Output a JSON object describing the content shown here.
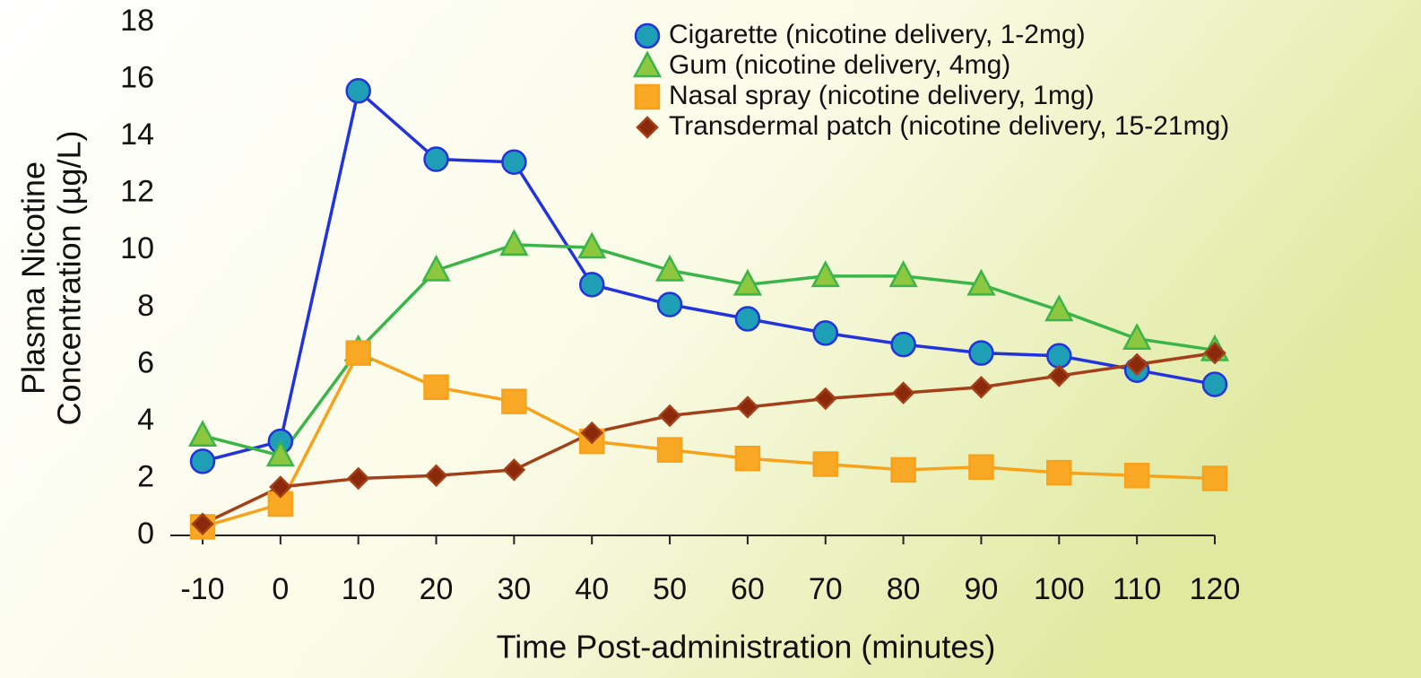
{
  "chart_data": {
    "type": "line",
    "xlabel": "Time Post-administration (minutes)",
    "ylabel": [
      "Plasma Nicotine",
      "Concentration (µg/L)"
    ],
    "x": [
      -10,
      0,
      10,
      20,
      30,
      40,
      50,
      60,
      70,
      80,
      90,
      100,
      110,
      120
    ],
    "xlim": [
      -10,
      120
    ],
    "xticks": [
      -10,
      0,
      10,
      20,
      30,
      40,
      50,
      60,
      70,
      80,
      90,
      100,
      110,
      120
    ],
    "ylim": [
      0,
      18
    ],
    "yticks": [
      0,
      2,
      4,
      6,
      8,
      10,
      12,
      14,
      16,
      18
    ],
    "legend": "top-right",
    "series": [
      {
        "name": "Cigarette (nicotine delivery, 1-2mg)",
        "marker": "circle",
        "color": "#2233dd",
        "marker_color": "#1e9fb5",
        "values": [
          2.6,
          3.3,
          15.6,
          13.2,
          13.1,
          8.8,
          8.1,
          7.6,
          7.1,
          6.7,
          6.4,
          6.3,
          5.8,
          5.3
        ]
      },
      {
        "name": "Gum (nicotine delivery, 4mg)",
        "marker": "triangle",
        "color": "#3ab54a",
        "marker_color": "#8dc63f",
        "values": [
          3.5,
          2.8,
          6.5,
          9.3,
          10.2,
          10.1,
          9.3,
          8.8,
          9.1,
          9.1,
          8.8,
          7.9,
          6.9,
          6.5
        ]
      },
      {
        "name": "Nasal spray (nicotine delivery, 1mg)",
        "marker": "square",
        "color": "#f7a21b",
        "marker_color": "#f9a825",
        "values": [
          0.3,
          1.1,
          6.4,
          5.2,
          4.7,
          3.3,
          3.0,
          2.7,
          2.5,
          2.3,
          2.4,
          2.2,
          2.1,
          2.0
        ]
      },
      {
        "name": "Transdermal patch (nicotine delivery, 15-21mg)",
        "marker": "diamond",
        "color": "#a3401a",
        "marker_color": "#8b2a0a",
        "values": [
          0.4,
          1.7,
          2.0,
          2.1,
          2.3,
          3.6,
          4.2,
          4.5,
          4.8,
          5.0,
          5.2,
          5.6,
          6.0,
          6.4
        ]
      }
    ]
  }
}
